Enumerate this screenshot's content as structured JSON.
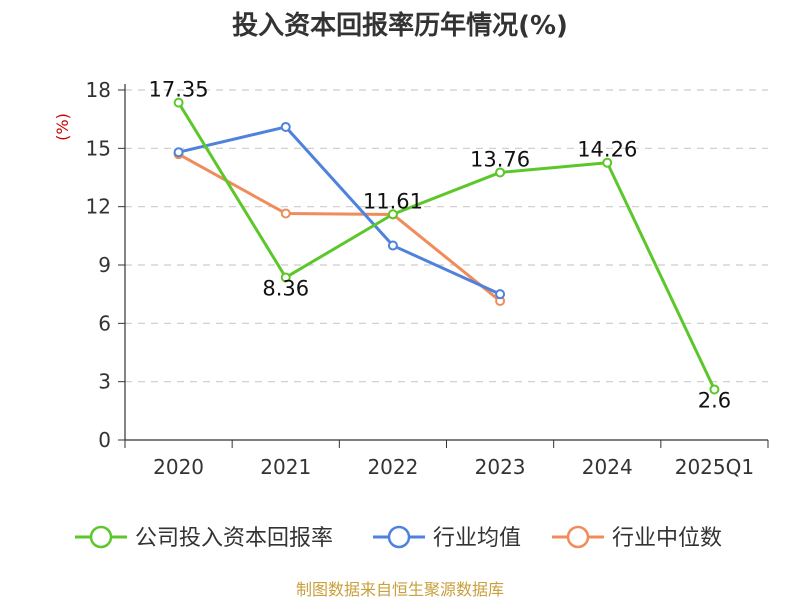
{
  "chart_data": {
    "type": "line",
    "title": "投入资本回报率历年情况(%)",
    "ylabel": "(%)",
    "xlabel": "",
    "ylim": [
      0,
      18
    ],
    "yticks": [
      0,
      3,
      6,
      9,
      12,
      15,
      18
    ],
    "categories": [
      "2020",
      "2021",
      "2022",
      "2023",
      "2024",
      "2025Q1"
    ],
    "grid": true,
    "legend_position": "bottom",
    "series": [
      {
        "name": "公司投入资本回报率",
        "color": "#5cc72a",
        "values": [
          17.35,
          8.36,
          11.61,
          13.76,
          14.26,
          2.6
        ],
        "labels": [
          "17.35",
          "8.36",
          "11.61",
          "13.76",
          "14.26",
          "2.6"
        ]
      },
      {
        "name": "行业均值",
        "color": "#4e82dc",
        "values": [
          14.8,
          16.1,
          10.0,
          7.5,
          null,
          null
        ]
      },
      {
        "name": "行业中位数",
        "color": "#f08c5a",
        "values": [
          14.7,
          11.65,
          11.6,
          7.15,
          null,
          null
        ]
      }
    ],
    "source": "制图数据来自恒生聚源数据库"
  }
}
